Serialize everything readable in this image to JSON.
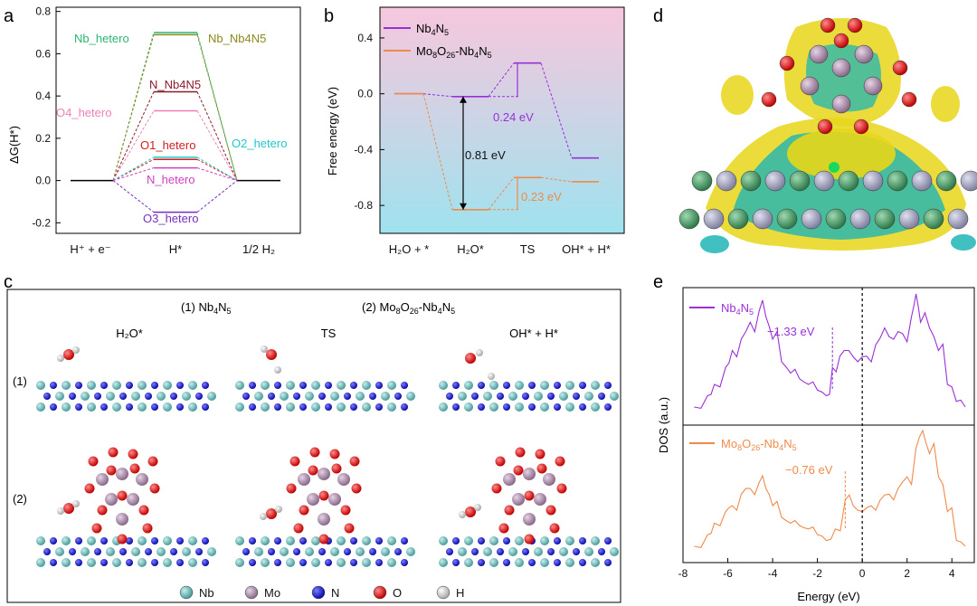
{
  "panels": {
    "a": {
      "letter": "a",
      "ylabel": "ΔG(H*)",
      "xlabels": [
        "H⁺ + e⁻",
        "H*",
        "1/2 H₂"
      ],
      "ylim": [
        -0.25,
        0.82
      ],
      "yticks": [
        "-0.2",
        "0.0",
        "0.2",
        "0.4",
        "0.6",
        "0.8"
      ],
      "ytick_values": [
        -0.2,
        0.0,
        0.2,
        0.4,
        0.6,
        0.8
      ],
      "labels": {
        "nb_hetero": "Nb_hetero",
        "nb_nb4n5": "Nb_Nb4N5",
        "n_nb4n5": "N_Nb4N5",
        "o4_hetero": "O4_hetero",
        "o1_hetero": "O1_hetero",
        "o2_hetero": "O2_hetero",
        "n_hetero": "N_hetero",
        "o3_hetero": "O3_hetero"
      }
    },
    "b": {
      "letter": "b",
      "ylabel": "Free energy (eV)",
      "xlabels": [
        "H₂O + *",
        "H₂O*",
        "TS",
        "OH* + H*"
      ],
      "yticks": [
        "0.4",
        "0.0",
        "-0.4",
        "-0.8"
      ],
      "ytick_values": [
        0.4,
        0.0,
        -0.4,
        -0.8
      ],
      "legend": [
        "Nb4N5",
        "Mo8O26-Nb4N5"
      ],
      "annotations": {
        "barrier1": "0.24 eV",
        "barrier2": "0.23 eV",
        "diff": "0.81 eV"
      }
    },
    "c": {
      "letter": "c",
      "title1": "(1) Nb4N5",
      "title2": "(2) Mo8O26-Nb4N5",
      "states": [
        "H₂O*",
        "TS",
        "OH* + H*"
      ],
      "rows": [
        "(1)",
        "(2)"
      ],
      "legend": [
        "Nb",
        "Mo",
        "N",
        "O",
        "H"
      ]
    },
    "d": {
      "letter": "d"
    },
    "e": {
      "letter": "e",
      "ylabel": "DOS (a.u.)",
      "xlabel": "Energy (eV)",
      "xticks": [
        "-8",
        "-6",
        "-4",
        "-2",
        "0",
        "2",
        "4"
      ],
      "legend": [
        "Nb4N5",
        "Mo8O26-Nb4N5"
      ],
      "annotations": {
        "center1": "−1.33 eV",
        "center2": "−0.76 eV"
      }
    }
  },
  "chart_data": [
    {
      "type": "line",
      "title": "a",
      "ylabel": "ΔG(H*)",
      "categories": [
        "H⁺ + e⁻",
        "H*",
        "1/2 H₂"
      ],
      "ylim": [
        -0.25,
        0.82
      ],
      "series": [
        {
          "name": "Nb_hetero",
          "values": [
            0,
            0.7,
            0
          ],
          "color": "#2bb673"
        },
        {
          "name": "Nb_Nb4N5",
          "values": [
            0,
            0.69,
            0
          ],
          "color": "#8a8a1e"
        },
        {
          "name": "N_Nb4N5",
          "values": [
            0,
            0.42,
            0
          ],
          "color": "#8b1a2b"
        },
        {
          "name": "O4_hetero",
          "values": [
            0,
            0.33,
            0
          ],
          "color": "#f07fb8"
        },
        {
          "name": "O1_hetero",
          "values": [
            0,
            0.1,
            0
          ],
          "color": "#d02020"
        },
        {
          "name": "O2_hetero",
          "values": [
            0,
            0.11,
            0
          ],
          "color": "#20c8c8"
        },
        {
          "name": "N_hetero",
          "values": [
            0,
            0.06,
            0
          ],
          "color": "#d040c0"
        },
        {
          "name": "O3_hetero",
          "values": [
            0,
            -0.15,
            0
          ],
          "color": "#7a2fc0"
        }
      ]
    },
    {
      "type": "line",
      "title": "b",
      "ylabel": "Free energy (eV)",
      "categories": [
        "H₂O + *",
        "H₂O*",
        "TS",
        "OH* + H*"
      ],
      "ylim": [
        -1.0,
        0.62
      ],
      "series": [
        {
          "name": "Nb4N5",
          "values": [
            0.0,
            -0.02,
            0.22,
            -0.46
          ],
          "color": "#9a30d8"
        },
        {
          "name": "Mo8O26-Nb4N5",
          "values": [
            0.0,
            -0.83,
            -0.6,
            -0.63
          ],
          "color": "#f08a4b"
        }
      ]
    },
    {
      "type": "line",
      "title": "e",
      "xlabel": "Energy (eV)",
      "ylabel": "DOS (a.u.)",
      "xlim": [
        -8,
        5
      ],
      "series": [
        {
          "name": "Nb4N5",
          "color": "#9a30d8",
          "d_band_center": -1.33,
          "x": [
            -7.5,
            -6.9,
            -6.6,
            -6.1,
            -5.8,
            -5.4,
            -5.0,
            -4.6,
            -4.3,
            -4.0,
            -3.6,
            -3.2,
            -2.8,
            -2.4,
            -2.0,
            -1.6,
            -1.33,
            -1.0,
            -0.6,
            -0.2,
            0.2,
            0.6,
            1.0,
            1.4,
            1.8,
            2.2,
            2.4,
            2.6,
            3.0,
            3.4,
            3.8,
            4.2,
            4.6
          ],
          "y": [
            0.0,
            0.1,
            0.2,
            0.35,
            0.5,
            0.6,
            0.75,
            0.85,
            0.8,
            0.6,
            0.4,
            0.3,
            0.25,
            0.2,
            0.15,
            0.1,
            0.35,
            0.45,
            0.5,
            0.4,
            0.45,
            0.55,
            0.7,
            0.6,
            0.65,
            0.8,
            1.0,
            0.75,
            0.7,
            0.5,
            0.2,
            0.05,
            0.0
          ]
        },
        {
          "name": "Mo8O26-Nb4N5",
          "color": "#f08a4b",
          "d_band_center": -0.76,
          "x": [
            -7.5,
            -6.9,
            -6.6,
            -6.1,
            -5.8,
            -5.4,
            -5.0,
            -4.6,
            -4.3,
            -4.0,
            -3.6,
            -3.2,
            -2.8,
            -2.4,
            -2.0,
            -1.6,
            -1.2,
            -0.76,
            -0.4,
            0.0,
            0.4,
            0.8,
            1.2,
            1.6,
            2.0,
            2.4,
            2.7,
            3.0,
            3.4,
            3.8,
            4.2,
            4.6
          ],
          "y": [
            0.0,
            0.1,
            0.2,
            0.3,
            0.35,
            0.45,
            0.5,
            0.55,
            0.5,
            0.35,
            0.25,
            0.2,
            0.18,
            0.15,
            0.1,
            0.05,
            0.15,
            0.4,
            0.35,
            0.3,
            0.35,
            0.4,
            0.45,
            0.5,
            0.6,
            0.85,
            1.0,
            0.8,
            0.6,
            0.3,
            0.05,
            0.0
          ]
        }
      ]
    }
  ]
}
